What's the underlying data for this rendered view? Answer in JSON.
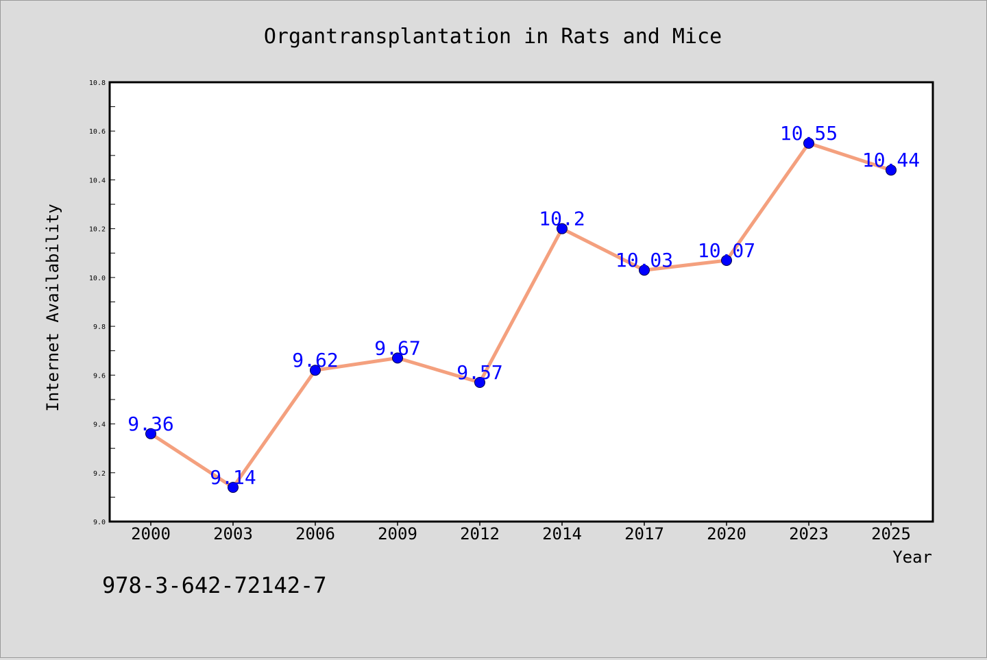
{
  "chart_data": {
    "type": "line",
    "title": "Organtransplantation in Rats and Mice",
    "xlabel": "Year",
    "ylabel": "Internet Availability",
    "ylim": [
      9.0,
      10.8
    ],
    "yticks": [
      "9.0",
      "9.2",
      "9.4",
      "9.6",
      "9.8",
      "10.0",
      "10.2",
      "10.4",
      "10.6",
      "10.8"
    ],
    "categories": [
      "2000",
      "2003",
      "2006",
      "2009",
      "2012",
      "2014",
      "2017",
      "2020",
      "2023",
      "2025"
    ],
    "series": [
      {
        "values": [
          9.36,
          9.14,
          9.62,
          9.67,
          9.57,
          10.2,
          10.03,
          10.07,
          10.55,
          10.44
        ],
        "labels": [
          "9.36",
          "9.14",
          "9.62",
          "9.67",
          "9.57",
          "10.2",
          "10.03",
          "10.07",
          "10.55",
          "10.44"
        ],
        "line_color": "#f4a07e",
        "marker_color": "#0000ff",
        "label_color": "#0000ff"
      }
    ],
    "grid": false,
    "annotation": "978-3-642-72142-7",
    "background": "#dcdcdc",
    "plot_background": "#ffffff"
  }
}
